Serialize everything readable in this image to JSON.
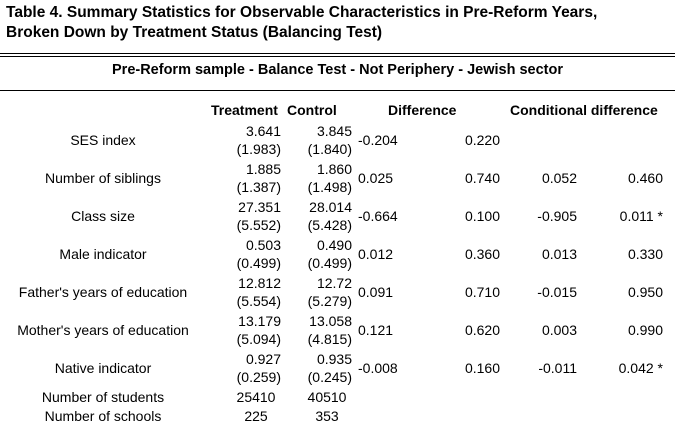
{
  "title_line1": "Table 4. Summary Statistics for Observable Characteristics in Pre-Reform Years,",
  "title_line2": "Broken Down by Treatment Status (Balancing Test)",
  "subtitle": "Pre-Reform  sample - Balance Test - Not Periphery - Jewish sector",
  "headers": {
    "treatment": "Treatment",
    "control": "Control",
    "difference": "Difference",
    "conditional": "Conditional difference"
  },
  "rows": [
    {
      "label": "SES index",
      "t_mean": "3.641",
      "t_sd": "(1.983)",
      "c_mean": "3.845",
      "c_sd": "(1.840)",
      "diff": "-0.204",
      "diff_p": "0.220",
      "cdiff": "",
      "cdiff_p": ""
    },
    {
      "label": "Number of siblings",
      "t_mean": "1.885",
      "t_sd": "(1.387)",
      "c_mean": "1.860",
      "c_sd": "(1.498)",
      "diff": "0.025",
      "diff_p": "0.740",
      "cdiff": "0.052",
      "cdiff_p": "0.460"
    },
    {
      "label": "Class size",
      "t_mean": "27.351",
      "t_sd": "(5.552)",
      "c_mean": "28.014",
      "c_sd": "(5.428)",
      "diff": "-0.664",
      "diff_p": "0.100",
      "cdiff": "-0.905",
      "cdiff_p": "0.011 *"
    },
    {
      "label": "Male indicator",
      "t_mean": "0.503",
      "t_sd": "(0.499)",
      "c_mean": "0.490",
      "c_sd": "(0.499)",
      "diff": "0.012",
      "diff_p": "0.360",
      "cdiff": "0.013",
      "cdiff_p": "0.330"
    },
    {
      "label": "Father's years of education",
      "t_mean": "12.812",
      "t_sd": "(5.554)",
      "c_mean": "12.72",
      "c_sd": "(5.279)",
      "diff": "0.091",
      "diff_p": "0.710",
      "cdiff": "-0.015",
      "cdiff_p": "0.950"
    },
    {
      "label": "Mother's years of education",
      "t_mean": "13.179",
      "t_sd": "(5.094)",
      "c_mean": "13.058",
      "c_sd": "(4.815)",
      "diff": "0.121",
      "diff_p": "0.620",
      "cdiff": "0.003",
      "cdiff_p": "0.990"
    },
    {
      "label": "Native indicator",
      "t_mean": "0.927",
      "t_sd": "(0.259)",
      "c_mean": "0.935",
      "c_sd": "(0.245)",
      "diff": "-0.008",
      "diff_p": "0.160",
      "cdiff": "-0.011",
      "cdiff_p": "0.042 *"
    }
  ],
  "counts": [
    {
      "label": "Number of students",
      "treatment": "25410",
      "control": "40510"
    },
    {
      "label": "Number of schools",
      "treatment": "225",
      "control": "353"
    }
  ]
}
